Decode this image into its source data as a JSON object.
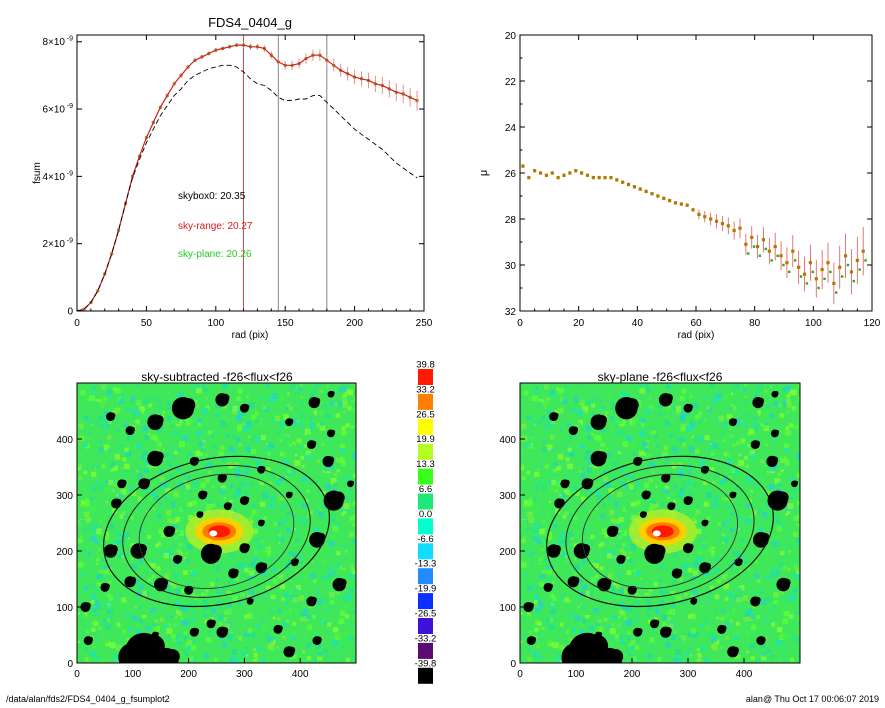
{
  "profile": {
    "title": "FDS4_0404_g",
    "xlabel": "rad (pix)",
    "ylabel": "fsum",
    "yticks": [
      {
        "value": 0,
        "label": "0"
      },
      {
        "value": 2e-09,
        "label": "2×10",
        "exp": "-9"
      },
      {
        "value": 4e-09,
        "label": "4×10",
        "exp": "-9"
      },
      {
        "value": 6e-09,
        "label": "6×10",
        "exp": "-9"
      },
      {
        "value": 8e-09,
        "label": "8×10",
        "exp": "-9"
      }
    ],
    "xticks": [
      "0",
      "50",
      "100",
      "150",
      "200",
      "250"
    ],
    "skybox0": "skybox0: 20.35",
    "sky_range": "sky-range: 20.27",
    "sky_plane": "sky-plane: 20.26",
    "colors": {
      "data": "#d81b1b",
      "err": "#f08c8c",
      "dashed": "#000000",
      "sky_plane": "#22cc22"
    }
  },
  "mu": {
    "xlabel": "rad (pix)",
    "ylabel": "μ",
    "yticks": [
      "20",
      "22",
      "24",
      "26",
      "28",
      "30",
      "32"
    ],
    "xticks": [
      "0",
      "20",
      "40",
      "60",
      "80",
      "100",
      "120"
    ]
  },
  "map_left": {
    "title": "sky-subtracted -f26<flux<f26",
    "xticks": [
      "0",
      "100",
      "200",
      "300",
      "400"
    ],
    "yticks": [
      "0",
      "100",
      "200",
      "300",
      "400"
    ]
  },
  "map_right": {
    "title": "sky-plane -f26<flux<f26",
    "xticks": [
      "0",
      "100",
      "200",
      "300",
      "400"
    ],
    "yticks": [
      "0",
      "100",
      "200",
      "300",
      "400"
    ]
  },
  "colorbar": {
    "labels": [
      "39.8",
      "33.2",
      "26.5",
      "19.9",
      "13.3",
      "6.6",
      "0.0",
      "-6.6",
      "-13.3",
      "-19.9",
      "-26.5",
      "-33.2",
      "-39.8"
    ],
    "colors": [
      "#ff1a00",
      "#ff8000",
      "#ffff00",
      "#b4ff22",
      "#38ff1c",
      "#1ee878",
      "#00ffcc",
      "#12dcff",
      "#1f8cff",
      "#0a2fff",
      "#4012d9",
      "#5a0a70",
      "#000000"
    ]
  },
  "footer": {
    "path": "/data/alan/fds2/FDS4_0404_g_fsumplot2",
    "stamp": "alan@  Thu Oct 17 00:06:07 2019"
  },
  "chart_data": [
    {
      "type": "line",
      "title": "FDS4_0404_g",
      "xlabel": "rad (pix)",
      "ylabel": "fsum",
      "xlim": [
        0,
        250
      ],
      "ylim": [
        0,
        8.2e-09
      ],
      "vlines": [
        120,
        145,
        180
      ],
      "series": [
        {
          "values": [
            [
              0,
              0
            ],
            [
              5,
              5e-11
            ],
            [
              10,
              2.5e-10
            ],
            [
              15,
              6e-10
            ],
            [
              20,
              1.1e-09
            ],
            [
              25,
              1.7e-09
            ],
            [
              30,
              2.4e-09
            ],
            [
              35,
              3.2e-09
            ],
            [
              40,
              4e-09
            ],
            [
              45,
              4.6e-09
            ],
            [
              50,
              5.15e-09
            ],
            [
              55,
              5.6e-09
            ],
            [
              60,
              6.05e-09
            ],
            [
              65,
              6.4e-09
            ],
            [
              70,
              6.75e-09
            ],
            [
              75,
              7e-09
            ],
            [
              80,
              7.25e-09
            ],
            [
              85,
              7.45e-09
            ],
            [
              90,
              7.55e-09
            ],
            [
              95,
              7.65e-09
            ],
            [
              100,
              7.75e-09
            ],
            [
              105,
              7.8e-09
            ],
            [
              110,
              7.85e-09
            ],
            [
              115,
              7.9e-09
            ],
            [
              120,
              7.9e-09
            ],
            [
              125,
              7.85e-09
            ],
            [
              130,
              7.85e-09
            ],
            [
              135,
              7.8e-09
            ],
            [
              140,
              7.6e-09
            ],
            [
              145,
              7.4e-09
            ],
            [
              150,
              7.3e-09
            ],
            [
              155,
              7.3e-09
            ],
            [
              160,
              7.35e-09
            ],
            [
              165,
              7.5e-09
            ],
            [
              170,
              7.6e-09
            ],
            [
              175,
              7.6e-09
            ],
            [
              180,
              7.45e-09
            ],
            [
              185,
              7.3e-09
            ],
            [
              190,
              7.15e-09
            ],
            [
              195,
              7.05e-09
            ],
            [
              200,
              6.95e-09
            ],
            [
              205,
              6.9e-09
            ],
            [
              210,
              6.85e-09
            ],
            [
              215,
              6.75e-09
            ],
            [
              220,
              6.7e-09
            ],
            [
              225,
              6.6e-09
            ],
            [
              230,
              6.5e-09
            ],
            [
              235,
              6.45e-09
            ],
            [
              240,
              6.35e-09
            ],
            [
              245,
              6.25e-09
            ]
          ]
        },
        {
          "style": "dashed",
          "values": [
            [
              0,
              0
            ],
            [
              5,
              5e-11
            ],
            [
              10,
              2.5e-10
            ],
            [
              15,
              6e-10
            ],
            [
              20,
              1.1e-09
            ],
            [
              25,
              1.7e-09
            ],
            [
              30,
              2.4e-09
            ],
            [
              35,
              3.2e-09
            ],
            [
              40,
              3.95e-09
            ],
            [
              45,
              4.5e-09
            ],
            [
              50,
              5e-09
            ],
            [
              55,
              5.4e-09
            ],
            [
              60,
              5.8e-09
            ],
            [
              65,
              6.1e-09
            ],
            [
              70,
              6.4e-09
            ],
            [
              75,
              6.6e-09
            ],
            [
              80,
              6.85e-09
            ],
            [
              85,
              7e-09
            ],
            [
              90,
              7.1e-09
            ],
            [
              95,
              7.2e-09
            ],
            [
              100,
              7.25e-09
            ],
            [
              105,
              7.3e-09
            ],
            [
              110,
              7.3e-09
            ],
            [
              115,
              7.25e-09
            ],
            [
              120,
              7.1e-09
            ],
            [
              125,
              6.9e-09
            ],
            [
              130,
              6.75e-09
            ],
            [
              135,
              6.7e-09
            ],
            [
              140,
              6.55e-09
            ],
            [
              145,
              6.35e-09
            ],
            [
              150,
              6.25e-09
            ],
            [
              155,
              6.25e-09
            ],
            [
              160,
              6.3e-09
            ],
            [
              165,
              6.3e-09
            ],
            [
              170,
              6.4e-09
            ],
            [
              175,
              6.4e-09
            ],
            [
              180,
              6.2e-09
            ],
            [
              185,
              6e-09
            ],
            [
              190,
              5.8e-09
            ],
            [
              195,
              5.6e-09
            ],
            [
              200,
              5.4e-09
            ],
            [
              205,
              5.25e-09
            ],
            [
              210,
              5.1e-09
            ],
            [
              215,
              4.95e-09
            ],
            [
              220,
              4.8e-09
            ],
            [
              225,
              4.6e-09
            ],
            [
              230,
              4.4e-09
            ],
            [
              235,
              4.25e-09
            ],
            [
              240,
              4.1e-09
            ],
            [
              245,
              3.95e-09
            ]
          ]
        }
      ],
      "annotations": [
        "skybox0: 20.35",
        "sky-range: 20.27",
        "sky-plane: 20.26"
      ]
    },
    {
      "type": "scatter",
      "xlabel": "rad (pix)",
      "ylabel": "μ",
      "xlim": [
        0,
        120
      ],
      "ylim": [
        32,
        20
      ],
      "values": [
        [
          1,
          25.7
        ],
        [
          3,
          26.2
        ],
        [
          5,
          25.9
        ],
        [
          7,
          26.0
        ],
        [
          9,
          26.1
        ],
        [
          11,
          26.0
        ],
        [
          13,
          26.2
        ],
        [
          15,
          26.1
        ],
        [
          17,
          26.0
        ],
        [
          19,
          25.9
        ],
        [
          21,
          26.0
        ],
        [
          23,
          26.1
        ],
        [
          25,
          26.2
        ],
        [
          27,
          26.2
        ],
        [
          29,
          26.2
        ],
        [
          31,
          26.2
        ],
        [
          33,
          26.3
        ],
        [
          35,
          26.4
        ],
        [
          37,
          26.5
        ],
        [
          39,
          26.6
        ],
        [
          41,
          26.7
        ],
        [
          43,
          26.8
        ],
        [
          45,
          26.9
        ],
        [
          47,
          27.0
        ],
        [
          49,
          27.1
        ],
        [
          51,
          27.2
        ],
        [
          53,
          27.3
        ],
        [
          55,
          27.35
        ],
        [
          57,
          27.4
        ],
        [
          59,
          27.6
        ],
        [
          61,
          27.8
        ],
        [
          63,
          27.9
        ],
        [
          65,
          28.0
        ],
        [
          67,
          28.1
        ],
        [
          69,
          28.2
        ],
        [
          71,
          28.3
        ],
        [
          73,
          28.5
        ],
        [
          75,
          28.4
        ],
        [
          77,
          29.1
        ],
        [
          79,
          28.8
        ],
        [
          81,
          29.2
        ],
        [
          83,
          28.9
        ],
        [
          85,
          29.4
        ],
        [
          87,
          29.2
        ],
        [
          89,
          29.6
        ],
        [
          91,
          29.9
        ],
        [
          93,
          29.4
        ],
        [
          95,
          30.1
        ],
        [
          97,
          30.4
        ],
        [
          99,
          29.9
        ],
        [
          101,
          30.6
        ],
        [
          103,
          30.2
        ],
        [
          105,
          29.9
        ],
        [
          107,
          30.8
        ],
        [
          109,
          30.1
        ],
        [
          111,
          29.6
        ],
        [
          113,
          30.3
        ],
        [
          115,
          29.8
        ],
        [
          117,
          29.4
        ]
      ]
    }
  ]
}
